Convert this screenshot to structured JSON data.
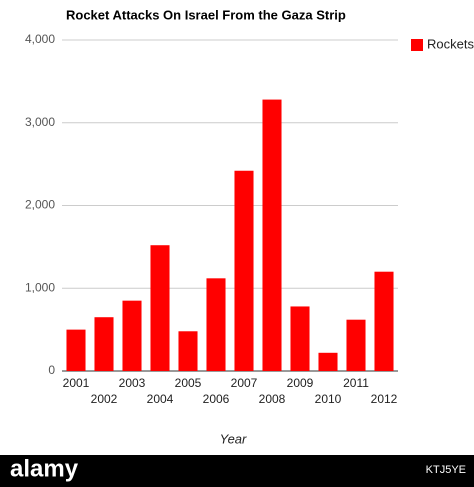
{
  "chart_data": {
    "type": "bar",
    "title": "Rocket Attacks On Israel From the Gaza Strip",
    "x_label": "Year",
    "categories": [
      "2001",
      "2002",
      "2003",
      "2004",
      "2005",
      "2006",
      "2007",
      "2008",
      "2009",
      "2010",
      "2011",
      "2012"
    ],
    "series": [
      {
        "name": "Rockets",
        "color": "#ff0000",
        "values": [
          500,
          650,
          850,
          1520,
          480,
          1120,
          2420,
          3280,
          780,
          220,
          620,
          1200
        ]
      }
    ],
    "ylim": [
      0,
      4000
    ],
    "yticks": [
      0,
      {
        "value": 1000,
        "label": "1,000"
      },
      {
        "value": 2000,
        "label": "2,000"
      },
      {
        "value": 3000,
        "label": "3,000"
      },
      {
        "value": 4000,
        "label": "4,000"
      }
    ],
    "grid": true,
    "legend": "right"
  },
  "footer": {
    "brand": "alamy",
    "image_id": "KTJ5YE"
  }
}
